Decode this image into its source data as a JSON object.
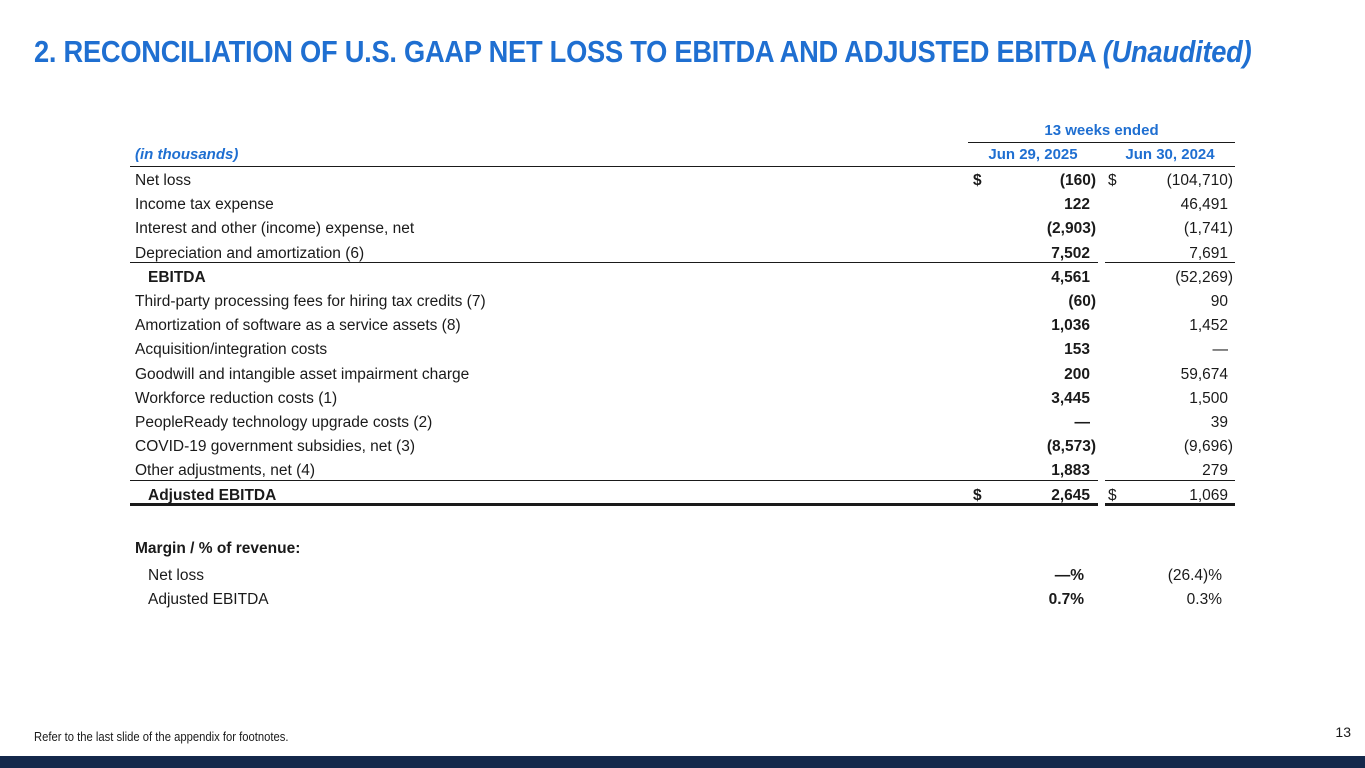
{
  "title": {
    "main": "2. RECONCILIATION OF U.S. GAAP NET LOSS TO EBITDA AND ADJUSTED EBITDA ",
    "qualifier": "(Unaudited)"
  },
  "table": {
    "period_header": "13 weeks ended",
    "units_label": "(in thousands)",
    "columns": [
      "Jun 29, 2025",
      "Jun 30, 2024"
    ],
    "rows": [
      {
        "label": "Net loss",
        "dollar1": "$",
        "v1": "(160)",
        "dollar2": "$",
        "v2": "(104,710)"
      },
      {
        "label": "Income tax expense",
        "dollar1": "",
        "v1": "122",
        "dollar2": "",
        "v2": "46,491"
      },
      {
        "label": "Interest and other (income) expense, net",
        "dollar1": "",
        "v1": "(2,903)",
        "dollar2": "",
        "v2": "(1,741)"
      },
      {
        "label": "Depreciation and amortization (6)",
        "dollar1": "",
        "v1": "7,502",
        "dollar2": "",
        "v2": "7,691"
      },
      {
        "label": "EBITDA",
        "dollar1": "",
        "v1": "4,561",
        "dollar2": "",
        "v2": "(52,269)"
      },
      {
        "label": "Third-party processing fees for hiring tax credits (7)",
        "dollar1": "",
        "v1": "(60)",
        "dollar2": "",
        "v2": "90"
      },
      {
        "label": "Amortization of software as a service assets (8)",
        "dollar1": "",
        "v1": "1,036",
        "dollar2": "",
        "v2": "1,452"
      },
      {
        "label": "Acquisition/integration costs",
        "dollar1": "",
        "v1": "153",
        "dollar2": "",
        "v2": "—"
      },
      {
        "label": "Goodwill and intangible asset impairment charge",
        "dollar1": "",
        "v1": "200",
        "dollar2": "",
        "v2": "59,674"
      },
      {
        "label": "Workforce reduction costs (1)",
        "dollar1": "",
        "v1": "3,445",
        "dollar2": "",
        "v2": "1,500"
      },
      {
        "label": "PeopleReady technology upgrade costs (2)",
        "dollar1": "",
        "v1": "—",
        "dollar2": "",
        "v2": "39"
      },
      {
        "label": "COVID-19 government subsidies, net (3)",
        "dollar1": "",
        "v1": "(8,573)",
        "dollar2": "",
        "v2": "(9,696)"
      },
      {
        "label": "Other adjustments, net (4)",
        "dollar1": "",
        "v1": "1,883",
        "dollar2": "",
        "v2": "279"
      },
      {
        "label": "Adjusted EBITDA",
        "dollar1": "$",
        "v1": "2,645",
        "dollar2": "$",
        "v2": "1,069"
      }
    ]
  },
  "margin": {
    "title": "Margin / % of revenue:",
    "rows": [
      {
        "label": "Net loss",
        "v1": "—%",
        "v2": "(26.4)%"
      },
      {
        "label": "Adjusted EBITDA",
        "v1": "0.7%",
        "v2": "0.3%"
      }
    ]
  },
  "footer": {
    "footnote": "Refer to the last slide of the appendix for footnotes.",
    "page_number": "13"
  },
  "colors": {
    "accent": "#1f6fd1",
    "bottom_bar": "#14284b"
  }
}
